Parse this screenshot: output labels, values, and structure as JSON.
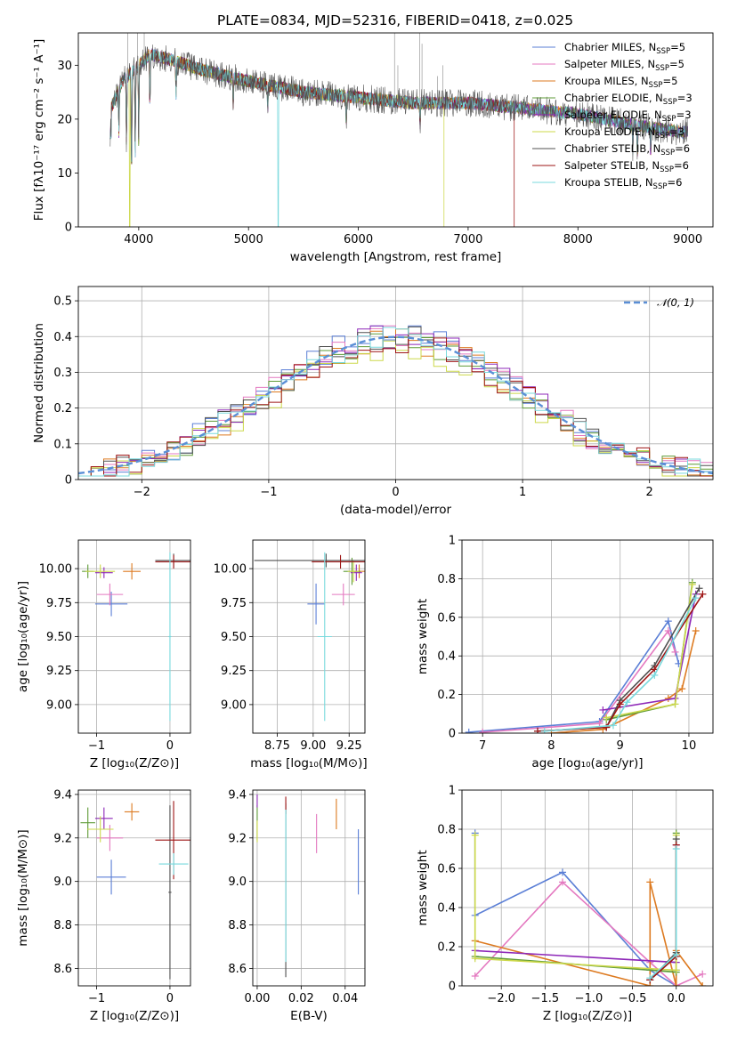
{
  "title": "PLATE=0834, MJD=52316, FIBERID=0418, z=0.025",
  "colors": {
    "chabrier_miles": "#5b7fd6",
    "salpeter_miles": "#e479c0",
    "kroupa_miles": "#dd7a20",
    "chabrier_elodie": "#5f9b38",
    "salpeter_elodie": "#8e28b8",
    "kroupa_elodie": "#ccd84a",
    "chabrier_stelib": "#505050",
    "salpeter_stelib": "#9e1616",
    "kroupa_stelib": "#79d9dd",
    "gaussian": "#5b8fd6"
  },
  "legend_top": [
    {
      "label": "Chabrier MILES, N",
      "sub": "SSP",
      "suffix": "=5",
      "color": "chabrier_miles"
    },
    {
      "label": "Salpeter MILES, N",
      "sub": "SSP",
      "suffix": "=5",
      "color": "salpeter_miles"
    },
    {
      "label": "Kroupa MILES, N",
      "sub": "SSP",
      "suffix": "=5",
      "color": "kroupa_miles"
    },
    {
      "label": "Chabrier ELODIE, N",
      "sub": "SSP",
      "suffix": "=3",
      "color": "chabrier_elodie"
    },
    {
      "label": "Salpeter ELODIE, N",
      "sub": "SSP",
      "suffix": "=3",
      "color": "salpeter_elodie"
    },
    {
      "label": "Kroupa ELODIE, N",
      "sub": "SSP",
      "suffix": "=3",
      "color": "kroupa_elodie"
    },
    {
      "label": "Chabrier STELIB, N",
      "sub": "SSP",
      "suffix": "=6",
      "color": "chabrier_stelib"
    },
    {
      "label": "Salpeter STELIB, N",
      "sub": "SSP",
      "suffix": "=6",
      "color": "salpeter_stelib"
    },
    {
      "label": "Kroupa STELIB, N",
      "sub": "SSP",
      "suffix": "=6",
      "color": "kroupa_stelib"
    }
  ],
  "chart_data": [
    {
      "id": "spectrum",
      "type": "line",
      "xlabel": "wavelength [Angstrom, rest frame]",
      "ylabel": "Flux [fλ10⁻¹⁷ erg cm⁻² s⁻¹ A⁻¹]",
      "xlim": [
        3450,
        9230
      ],
      "ylim": [
        0,
        36
      ],
      "xticks": [
        4000,
        5000,
        6000,
        7000,
        8000,
        9000
      ],
      "yticks": [
        0,
        10,
        20,
        30
      ],
      "grid": false,
      "legend_position": "top-right",
      "continuum_points": [
        [
          3750,
          22
        ],
        [
          3850,
          27
        ],
        [
          3950,
          29
        ],
        [
          4100,
          32
        ],
        [
          4300,
          31
        ],
        [
          4600,
          29
        ],
        [
          5000,
          27
        ],
        [
          5500,
          25
        ],
        [
          6000,
          24
        ],
        [
          6500,
          23
        ],
        [
          7000,
          23
        ],
        [
          7500,
          22
        ],
        [
          8000,
          21
        ],
        [
          8500,
          19
        ],
        [
          8800,
          18
        ],
        [
          9000,
          17.5
        ]
      ],
      "data_range_x": [
        3740,
        9000
      ],
      "kroupa_elodie_dropout_x": 6780,
      "salpeter_stelib_dropout_x": 7420,
      "deep_drop_x": 5270,
      "deep_drop_min": 0
    },
    {
      "id": "residuals",
      "type": "histogram",
      "xlabel": "(data-model)/error",
      "ylabel": "Normed distribution",
      "xlim": [
        -2.5,
        2.5
      ],
      "ylim": [
        0,
        0.54
      ],
      "xticks": [
        -2,
        -1,
        0,
        1,
        2
      ],
      "yticks": [
        0.0,
        0.1,
        0.2,
        0.3,
        0.4,
        0.5
      ],
      "grid": true,
      "legend_position": "top-right",
      "legend": "𝒩(0, 1)",
      "bin_width": 0.1,
      "bin_start": -2.5,
      "series_amplitude": [
        0.41,
        0.4,
        0.39,
        0.38,
        0.4,
        0.37,
        0.4,
        0.39,
        0.4
      ]
    },
    {
      "id": "age_vs_Z",
      "type": "errorbar",
      "xlabel": "Z [log₁₀(Z/Z⊙)]",
      "ylabel": "age  [log₁₀(age/yr)]",
      "xlim": [
        -1.25,
        0.28
      ],
      "ylim": [
        8.79,
        10.21
      ],
      "xticks": [
        -1,
        0
      ],
      "yticks": [
        9.0,
        9.25,
        9.5,
        9.75,
        10.0
      ],
      "ytick_labels": [
        "9.00",
        "9.25",
        "9.50",
        "9.75",
        "10.00"
      ],
      "grid": true,
      "points": [
        {
          "c": "chabrier_miles",
          "x": -0.8,
          "xerr": 0.22,
          "y": 9.74,
          "yerr": 0.09
        },
        {
          "c": "salpeter_miles",
          "x": -0.82,
          "xerr": 0.18,
          "y": 9.81,
          "yerr": 0.08
        },
        {
          "c": "kroupa_miles",
          "x": -0.52,
          "xerr": 0.12,
          "y": 9.98,
          "yerr": 0.06
        },
        {
          "c": "chabrier_elodie",
          "x": -1.12,
          "xerr": 0.08,
          "y": 9.98,
          "yerr": 0.05
        },
        {
          "c": "salpeter_elodie",
          "x": -0.9,
          "xerr": 0.12,
          "y": 9.97,
          "yerr": 0.04
        },
        {
          "c": "kroupa_elodie",
          "x": -0.95,
          "xerr": 0.2,
          "y": 9.98,
          "yerr": 0.05
        },
        {
          "c": "chabrier_stelib",
          "x": 0.05,
          "xerr": 0.25,
          "y": 10.06,
          "yerr": 0.05
        },
        {
          "c": "salpeter_stelib",
          "x": 0.05,
          "xerr": 0.25,
          "y": 10.05,
          "yerr": 0.05
        },
        {
          "c": "kroupa_stelib",
          "x": 0.0,
          "xerr": 0.02,
          "y": 9.5,
          "yerr": 0.62
        }
      ]
    },
    {
      "id": "age_vs_mass",
      "type": "errorbar",
      "xlabel": "mass [log₁₀(M/M⊙)]",
      "ylabel": "",
      "xlim": [
        8.58,
        9.36
      ],
      "ylim": [
        8.79,
        10.21
      ],
      "xticks": [
        8.75,
        9.0,
        9.25
      ],
      "xtick_labels": [
        "8.75",
        "9.00",
        "9.25"
      ],
      "yticks": [
        9.0,
        9.25,
        9.5,
        9.75,
        10.0
      ],
      "ytick_labels": [
        "9.00",
        "9.25",
        "9.50",
        "9.75",
        "10.00"
      ],
      "grid": true,
      "points": [
        {
          "c": "chabrier_miles",
          "x": 9.02,
          "xerr": 0.06,
          "y": 9.74,
          "yerr": 0.15
        },
        {
          "c": "salpeter_miles",
          "x": 9.21,
          "xerr": 0.08,
          "y": 9.81,
          "yerr": 0.08
        },
        {
          "c": "kroupa_miles",
          "x": 9.32,
          "xerr": 0.04,
          "y": 9.98,
          "yerr": 0.05
        },
        {
          "c": "chabrier_elodie",
          "x": 9.27,
          "xerr": 0.06,
          "y": 9.98,
          "yerr": 0.1
        },
        {
          "c": "salpeter_elodie",
          "x": 9.3,
          "xerr": 0.04,
          "y": 9.97,
          "yerr": 0.06
        },
        {
          "c": "kroupa_elodie",
          "x": 9.28,
          "xerr": 0.04,
          "y": 9.98,
          "yerr": 0.08
        },
        {
          "c": "chabrier_stelib",
          "x": 9.09,
          "xerr": 0.5,
          "y": 10.06,
          "yerr": 0.05
        },
        {
          "c": "salpeter_stelib",
          "x": 9.19,
          "xerr": 0.2,
          "y": 10.05,
          "yerr": 0.05
        },
        {
          "c": "kroupa_stelib",
          "x": 9.08,
          "xerr": 0.05,
          "y": 9.5,
          "yerr": 0.62
        }
      ]
    },
    {
      "id": "weight_vs_age",
      "type": "line",
      "xlabel": "age  [log₁₀(age/yr)]",
      "ylabel": "mass weight",
      "xlim": [
        6.7,
        10.35
      ],
      "ylim": [
        0,
        1.0
      ],
      "xticks": [
        7,
        8,
        9,
        10
      ],
      "yticks": [
        0.0,
        0.2,
        0.4,
        0.6,
        0.8,
        1.0
      ],
      "grid": true,
      "series": [
        {
          "c": "chabrier_miles",
          "x": [
            6.8,
            8.7,
            9.7,
            9.85
          ],
          "y": [
            0.005,
            0.06,
            0.58,
            0.36
          ]
        },
        {
          "c": "salpeter_miles",
          "x": [
            7.0,
            8.7,
            9.7,
            9.8
          ],
          "y": [
            0.005,
            0.05,
            0.53,
            0.42
          ]
        },
        {
          "c": "kroupa_miles",
          "x": [
            8.0,
            8.75,
            9.7,
            9.9,
            10.1
          ],
          "y": [
            0.0,
            0.02,
            0.18,
            0.23,
            0.53
          ]
        },
        {
          "c": "chabrier_elodie",
          "x": [
            8.8,
            9.8,
            10.05
          ],
          "y": [
            0.07,
            0.15,
            0.78
          ]
        },
        {
          "c": "salpeter_elodie",
          "x": [
            8.75,
            9.8,
            10.1
          ],
          "y": [
            0.12,
            0.18,
            0.72
          ]
        },
        {
          "c": "kroupa_elodie",
          "x": [
            8.8,
            9.8,
            10.05
          ],
          "y": [
            0.08,
            0.15,
            0.77
          ]
        },
        {
          "c": "chabrier_stelib",
          "x": [
            7.8,
            8.8,
            9.0,
            9.5,
            10.15
          ],
          "y": [
            0.01,
            0.03,
            0.17,
            0.35,
            0.75
          ]
        },
        {
          "c": "salpeter_stelib",
          "x": [
            7.8,
            8.8,
            9.0,
            9.5,
            10.2
          ],
          "y": [
            0.01,
            0.03,
            0.15,
            0.33,
            0.72
          ]
        },
        {
          "c": "kroupa_stelib",
          "x": [
            7.9,
            8.9,
            9.1,
            9.5,
            10.1
          ],
          "y": [
            0.01,
            0.04,
            0.16,
            0.3,
            0.7
          ]
        }
      ]
    },
    {
      "id": "mass_vs_Z",
      "type": "errorbar",
      "xlabel": "Z [log₁₀(Z/Z⊙)]",
      "ylabel": "mass [log₁₀(M/M⊙)]",
      "xlim": [
        -1.25,
        0.28
      ],
      "ylim": [
        8.52,
        9.42
      ],
      "xticks": [
        -1,
        0
      ],
      "yticks": [
        8.6,
        8.8,
        9.0,
        9.2,
        9.4
      ],
      "ytick_labels": [
        "8.6",
        "8.8",
        "9.0",
        "9.2",
        "9.4"
      ],
      "grid": true,
      "points": [
        {
          "c": "chabrier_miles",
          "x": -0.8,
          "xerr": 0.2,
          "y": 9.02,
          "yerr": 0.08
        },
        {
          "c": "salpeter_miles",
          "x": -0.82,
          "xerr": 0.18,
          "y": 9.2,
          "yerr": 0.06
        },
        {
          "c": "kroupa_miles",
          "x": -0.52,
          "xerr": 0.1,
          "y": 9.32,
          "yerr": 0.04
        },
        {
          "c": "chabrier_elodie",
          "x": -1.12,
          "xerr": 0.1,
          "y": 9.27,
          "yerr": 0.07
        },
        {
          "c": "salpeter_elodie",
          "x": -0.9,
          "xerr": 0.12,
          "y": 9.29,
          "yerr": 0.05
        },
        {
          "c": "kroupa_elodie",
          "x": -0.95,
          "xerr": 0.18,
          "y": 9.24,
          "yerr": 0.06
        },
        {
          "c": "chabrier_stelib",
          "x": 0.0,
          "xerr": 0.02,
          "y": 8.95,
          "yerr": 0.4
        },
        {
          "c": "salpeter_stelib",
          "x": 0.05,
          "xerr": 0.25,
          "y": 9.19,
          "yerr": 0.18
        },
        {
          "c": "kroupa_stelib",
          "x": 0.05,
          "xerr": 0.2,
          "y": 9.08,
          "yerr": 0.05
        }
      ]
    },
    {
      "id": "mass_vs_ebv",
      "type": "errorbar",
      "xlabel": "E(B-V)",
      "ylabel": "",
      "xlim": [
        -0.002,
        0.049
      ],
      "ylim": [
        8.52,
        9.42
      ],
      "xticks": [
        0.0,
        0.02,
        0.04
      ],
      "xtick_labels": [
        "0.00",
        "0.02",
        "0.04"
      ],
      "yticks": [
        8.6,
        8.8,
        9.0,
        9.2,
        9.4
      ],
      "ytick_labels": [
        "8.6",
        "8.8",
        "9.0",
        "9.2",
        "9.4"
      ],
      "grid": true,
      "points": [
        {
          "c": "chabrier_miles",
          "x": 0.046,
          "xerr": 0,
          "y": 9.09,
          "yerr": 0.15
        },
        {
          "c": "salpeter_miles",
          "x": 0.027,
          "xerr": 0,
          "y": 9.22,
          "yerr": 0.09
        },
        {
          "c": "kroupa_miles",
          "x": 0.036,
          "xerr": 0,
          "y": 9.31,
          "yerr": 0.07
        },
        {
          "c": "chabrier_elodie",
          "x": 0.0,
          "xerr": 0,
          "y": 9.27,
          "yerr": 0.08
        },
        {
          "c": "salpeter_elodie",
          "x": 0.0,
          "xerr": 0,
          "y": 9.37,
          "yerr": 0.03
        },
        {
          "c": "kroupa_elodie",
          "x": 0.0,
          "xerr": 0,
          "y": 9.23,
          "yerr": 0.05
        },
        {
          "c": "chabrier_stelib",
          "x": 0.013,
          "xerr": 0,
          "y": 8.96,
          "yerr": 0.4
        },
        {
          "c": "salpeter_stelib",
          "x": 0.013,
          "xerr": 0,
          "y": 9.35,
          "yerr": 0.04
        },
        {
          "c": "kroupa_stelib",
          "x": 0.013,
          "xerr": 0,
          "y": 8.98,
          "yerr": 0.35
        }
      ]
    },
    {
      "id": "weight_vs_Z",
      "type": "line",
      "xlabel": "Z [log₁₀(Z/Z⊙)]",
      "ylabel": "mass weight",
      "xlim": [
        -2.45,
        0.42
      ],
      "ylim": [
        0,
        1.0
      ],
      "xticks": [
        -2.0,
        -1.5,
        -1.0,
        -0.5,
        0.0
      ],
      "xtick_labels": [
        "−2.0",
        "−1.5",
        "−1.0",
        "−0.5",
        "0.0"
      ],
      "yticks": [
        0.0,
        0.2,
        0.4,
        0.6,
        0.8,
        1.0
      ],
      "grid": true,
      "series": [
        {
          "c": "chabrier_miles",
          "x": [
            -2.3,
            -2.3,
            -1.3,
            -0.3,
            0.0,
            0.0
          ],
          "y": [
            0.78,
            0.36,
            0.58,
            0.08,
            0.0,
            0.08
          ]
        },
        {
          "c": "salpeter_miles",
          "x": [
            -2.3,
            -1.3,
            -0.3,
            0.0,
            0.3
          ],
          "y": [
            0.05,
            0.53,
            0.12,
            0.0,
            0.06
          ]
        },
        {
          "c": "kroupa_miles",
          "x": [
            -2.3,
            -0.3,
            -0.3,
            0.0,
            0.0,
            0.3
          ],
          "y": [
            0.23,
            0.0,
            0.53,
            0.0,
            0.18,
            0.0
          ]
        },
        {
          "c": "chabrier_elodie",
          "x": [
            -2.3,
            0.0,
            0.0
          ],
          "y": [
            0.15,
            0.07,
            0.78
          ]
        },
        {
          "c": "salpeter_elodie",
          "x": [
            -2.3,
            0.0,
            0.0
          ],
          "y": [
            0.18,
            0.12,
            0.72
          ]
        },
        {
          "c": "kroupa_elodie",
          "x": [
            -2.3,
            -2.3,
            0.0,
            0.0
          ],
          "y": [
            0.77,
            0.14,
            0.08,
            0.77
          ]
        },
        {
          "c": "chabrier_stelib",
          "x": [
            -0.3,
            0.0,
            0.0
          ],
          "y": [
            0.03,
            0.17,
            0.75
          ]
        },
        {
          "c": "salpeter_stelib",
          "x": [
            -0.3,
            0.0,
            0.0
          ],
          "y": [
            0.03,
            0.15,
            0.72
          ]
        },
        {
          "c": "kroupa_stelib",
          "x": [
            -0.3,
            0.0,
            0.0
          ],
          "y": [
            0.04,
            0.16,
            0.7
          ]
        }
      ]
    }
  ]
}
